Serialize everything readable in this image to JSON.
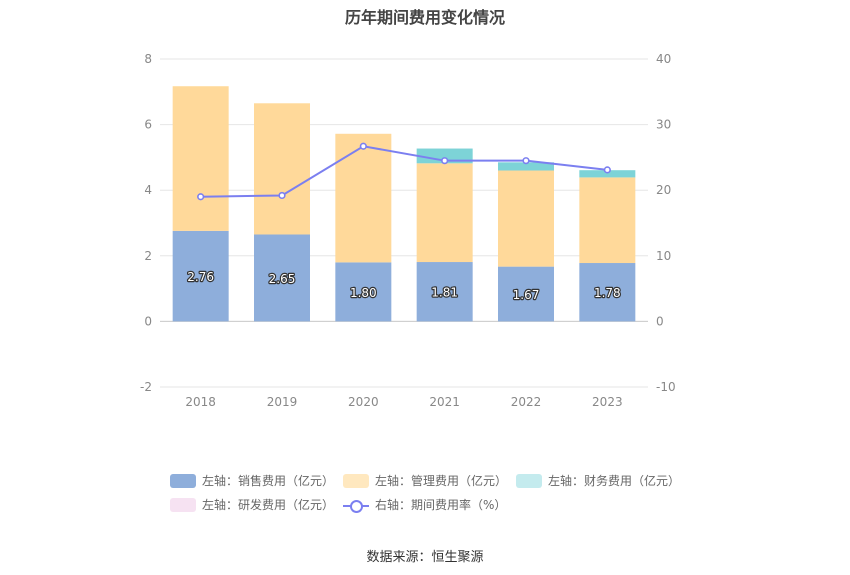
{
  "title": "历年期间费用变化情况",
  "source": "数据来源：恒生聚源",
  "colors": {
    "sales": "#8eaedb",
    "admin": "#ffd99a",
    "finance": "#7dd3d7",
    "rnd": "#f0d6ec",
    "rate": "#7b7ff0",
    "grid": "#e6e6e6",
    "axis_text": "#888888"
  },
  "legend": [
    {
      "label": "左轴：销售费用（亿元）",
      "type": "bar",
      "color": "#8eaedb"
    },
    {
      "label": "左轴：管理费用（亿元）",
      "type": "bar",
      "color": "#ffe8bf"
    },
    {
      "label": "左轴：财务费用（亿元）",
      "type": "bar",
      "color": "#c4ebee"
    },
    {
      "label": "左轴：研发费用（亿元）",
      "type": "bar",
      "color": "#f6e2f2"
    },
    {
      "label": "右轴：期间费用率（%）",
      "type": "line",
      "color": "#7b7ff0"
    }
  ],
  "chart_data": {
    "type": "bar",
    "stacked": true,
    "categories": [
      "2018",
      "2019",
      "2020",
      "2021",
      "2022",
      "2023"
    ],
    "left_axis": {
      "ylim": [
        -2,
        8
      ],
      "ticks": [
        "8",
        "6",
        "4",
        "2",
        "0",
        "-2"
      ]
    },
    "right_axis": {
      "ylim": [
        -10,
        40
      ],
      "ticks": [
        "40",
        "30",
        "20",
        "10",
        "0",
        "-10"
      ]
    },
    "series": [
      {
        "name": "左轴：销售费用（亿元）",
        "key": "sales",
        "axis": "left",
        "values": [
          2.76,
          2.65,
          1.8,
          1.81,
          1.67,
          1.78
        ],
        "labels": [
          "2.76",
          "2.65",
          "1.80",
          "1.81",
          "1.67",
          "1.78"
        ]
      },
      {
        "name": "左轴：管理费用（亿元）",
        "key": "admin",
        "axis": "left",
        "values": [
          4.41,
          4.0,
          3.92,
          3.01,
          2.93,
          2.61
        ]
      },
      {
        "name": "左轴：财务费用（亿元）",
        "key": "finance",
        "axis": "left",
        "values": [
          0.0,
          0.0,
          0.0,
          0.45,
          0.25,
          0.22
        ]
      },
      {
        "name": "左轴：研发费用（亿元）",
        "key": "rnd",
        "axis": "left",
        "values": [
          0,
          0,
          0,
          0,
          0,
          0
        ]
      },
      {
        "name": "右轴：期间费用率（%）",
        "key": "rate",
        "axis": "right",
        "type": "line",
        "values": [
          19.0,
          19.2,
          26.7,
          24.5,
          24.5,
          23.1
        ]
      }
    ],
    "grid": true,
    "legend_position": "bottom"
  }
}
